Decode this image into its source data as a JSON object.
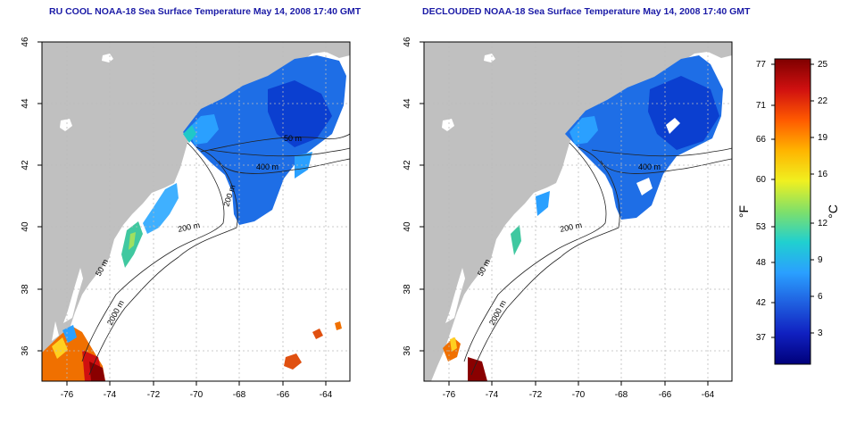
{
  "panels": [
    {
      "title": "RU COOL NOAA-18 Sea Surface Temperature May 14, 2008 17:40 GMT",
      "contour_labels": [
        "50 m",
        "2000 m",
        "200 m",
        "400 m",
        "200 m",
        "50 m"
      ]
    },
    {
      "title": "DECLOUDED NOAA-18 Sea Surface Temperature May 14, 2008 17:40 GMT",
      "contour_labels": [
        "50 m",
        "2000 m",
        "200 m",
        "400 m"
      ]
    }
  ],
  "axes": {
    "lon_ticks": [
      "-76",
      "-74",
      "-72",
      "-70",
      "-68",
      "-66",
      "-64"
    ],
    "lat_ticks": [
      "36",
      "38",
      "40",
      "42",
      "44",
      "46"
    ]
  },
  "colorbar": {
    "fahrenheit_label": "°F",
    "celsius_label": "°C",
    "fahrenheit_ticks": [
      "77",
      "71",
      "66",
      "60",
      "53",
      "48",
      "42",
      "37"
    ],
    "celsius_ticks": [
      "25",
      "22",
      "19",
      "16",
      "12",
      "9",
      "6",
      "3"
    ],
    "gradient_colors": [
      "#7f0000",
      "#d01010",
      "#ff5a00",
      "#ffb400",
      "#f0f020",
      "#7fe06a",
      "#20d0d0",
      "#2aa0ff",
      "#1f5fe0",
      "#1020c0",
      "#00007a"
    ]
  },
  "colors": {
    "land": "#c0c0c0",
    "ocean": "#ffffff",
    "title": "#1a1aa6",
    "grid": "#bbbbbb"
  }
}
